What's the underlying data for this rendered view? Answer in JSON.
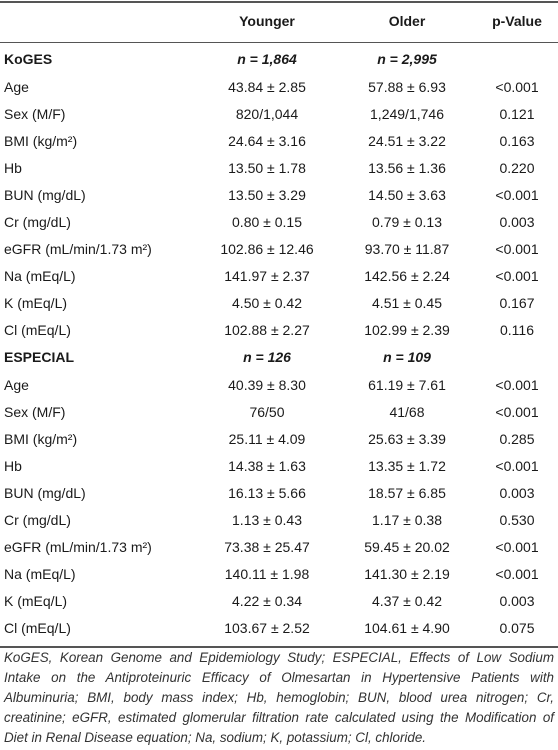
{
  "table": {
    "columns": [
      "Younger",
      "Older",
      "p-Value"
    ],
    "sections": [
      {
        "name": "KoGES",
        "younger": "n = 1,864",
        "older": "n = 2,995",
        "rows": [
          [
            "Age",
            "43.84 ± 2.85",
            "57.88 ± 6.93",
            "<0.001"
          ],
          [
            "Sex (M/F)",
            "820/1,044",
            "1,249/1,746",
            "0.121"
          ],
          [
            "BMI (kg/m²)",
            "24.64 ± 3.16",
            "24.51 ± 3.22",
            "0.163"
          ],
          [
            "Hb",
            "13.50 ± 1.78",
            "13.56 ± 1.36",
            "0.220"
          ],
          [
            "BUN (mg/dL)",
            "13.50 ± 3.29",
            "14.50 ± 3.63",
            "<0.001"
          ],
          [
            "Cr (mg/dL)",
            "0.80 ± 0.15",
            "0.79 ± 0.13",
            "0.003"
          ],
          [
            "eGFR (mL/min/1.73 m²)",
            "102.86 ± 12.46",
            "93.70 ± 11.87",
            "<0.001"
          ],
          [
            "Na (mEq/L)",
            "141.97 ± 2.37",
            "142.56 ± 2.24",
            "<0.001"
          ],
          [
            "K (mEq/L)",
            "4.50 ± 0.42",
            "4.51 ± 0.45",
            "0.167"
          ],
          [
            "Cl (mEq/L)",
            "102.88 ± 2.27",
            "102.99 ± 2.39",
            "0.116"
          ]
        ]
      },
      {
        "name": "ESPECIAL",
        "younger": "n = 126",
        "older": "n = 109",
        "rows": [
          [
            "Age",
            "40.39 ± 8.30",
            "61.19 ± 7.61",
            "<0.001"
          ],
          [
            "Sex (M/F)",
            "76/50",
            "41/68",
            "<0.001"
          ],
          [
            "BMI (kg/m²)",
            "25.11 ± 4.09",
            "25.63 ± 3.39",
            "0.285"
          ],
          [
            "Hb",
            "14.38 ± 1.63",
            "13.35 ± 1.72",
            "<0.001"
          ],
          [
            "BUN (mg/dL)",
            "16.13 ± 5.66",
            "18.57 ± 6.85",
            "0.003"
          ],
          [
            "Cr (mg/dL)",
            "1.13 ± 0.43",
            "1.17 ± 0.38",
            "0.530"
          ],
          [
            "eGFR (mL/min/1.73 m²)",
            "73.38 ± 25.47",
            "59.45 ± 20.02",
            "<0.001"
          ],
          [
            "Na (mEq/L)",
            "140.11 ± 1.98",
            "141.30 ± 2.19",
            "<0.001"
          ],
          [
            "K (mEq/L)",
            "4.22 ± 0.34",
            "4.37 ± 0.42",
            "0.003"
          ],
          [
            "Cl (mEq/L)",
            "103.67 ± 2.52",
            "104.61 ± 4.90",
            "0.075"
          ]
        ]
      }
    ],
    "footnote": "KoGES, Korean Genome and Epidemiology Study; ESPECIAL, Effects of Low Sodium Intake on the Antiproteinuric Efficacy of Olmesartan in Hypertensive Patients with Albuminuria; BMI, body mass index; Hb, hemoglobin; BUN, blood urea nitrogen; Cr, creatinine; eGFR, estimated glomerular filtration rate calculated using the Modification of Diet in Renal Disease equation; Na, sodium; K, potassium; Cl, chloride."
  }
}
